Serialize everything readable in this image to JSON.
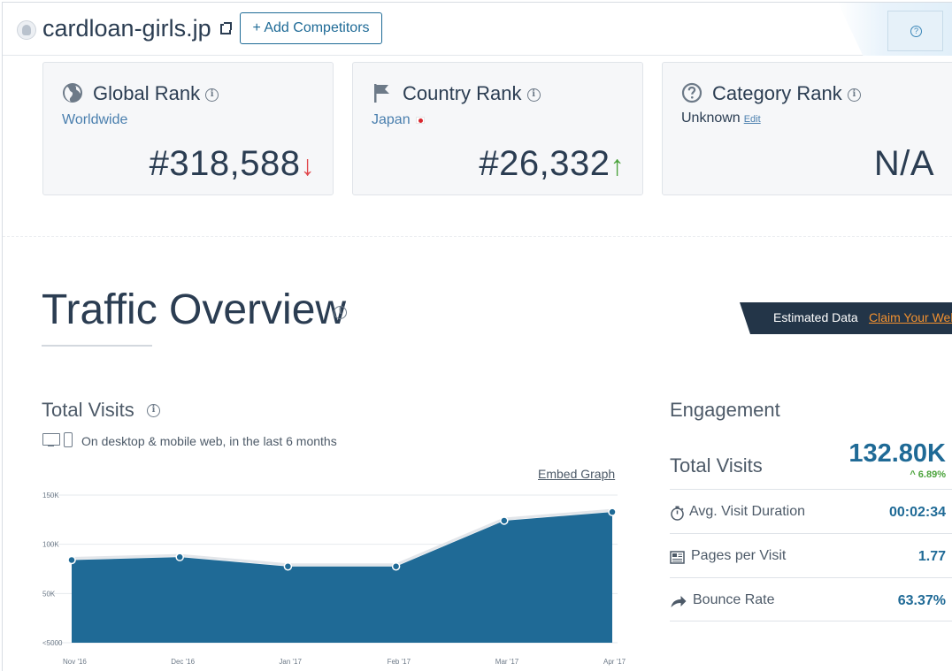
{
  "header": {
    "site": "cardloan-girls.jp",
    "add_competitors": "+ Add Competitors",
    "help_icon": "question-icon"
  },
  "ranks": {
    "global": {
      "title": "Global Rank",
      "sub": "Worldwide",
      "value": "#318,588",
      "trend": "down",
      "icon": "globe-icon"
    },
    "country": {
      "title": "Country Rank",
      "sub": "Japan",
      "value": "#26,332",
      "trend": "up",
      "icon": "flag-icon"
    },
    "category": {
      "title": "Category Rank",
      "sub": "Unknown",
      "edit": "Edit",
      "value": "N/A",
      "icon": "question-circle-icon"
    }
  },
  "traffic": {
    "title": "Traffic Overview",
    "estimated_label": "Estimated Data",
    "claim_link": "Claim Your Website",
    "total_visits_title": "Total Visits",
    "description": "On desktop & mobile web, in the last 6 months",
    "embed_link": "Embed Graph"
  },
  "chart_data": {
    "type": "area",
    "title": "Total Visits",
    "categories": [
      "Nov '16",
      "Dec '16",
      "Jan '17",
      "Feb '17",
      "Mar '17",
      "Apr '17"
    ],
    "series": [
      {
        "values": [
          84000,
          87000,
          77500,
          77500,
          124000,
          132800
        ]
      }
    ],
    "y_ticks": [
      "<5000",
      "50K",
      "100K",
      "150K"
    ],
    "ylim": [
      0,
      150000
    ],
    "grid": true,
    "color": "#1f6a96"
  },
  "engagement": {
    "title": "Engagement",
    "total_visits_label": "Total Visits",
    "total_visits_value": "132.80K",
    "total_visits_change": "6.89%",
    "rows": [
      {
        "label": "Avg. Visit Duration",
        "value": "00:02:34",
        "icon": "stopwatch-icon"
      },
      {
        "label": "Pages per Visit",
        "value": "1.77",
        "icon": "pages-icon"
      },
      {
        "label": "Bounce Rate",
        "value": "63.37%",
        "icon": "bounce-arrow-icon"
      }
    ]
  }
}
